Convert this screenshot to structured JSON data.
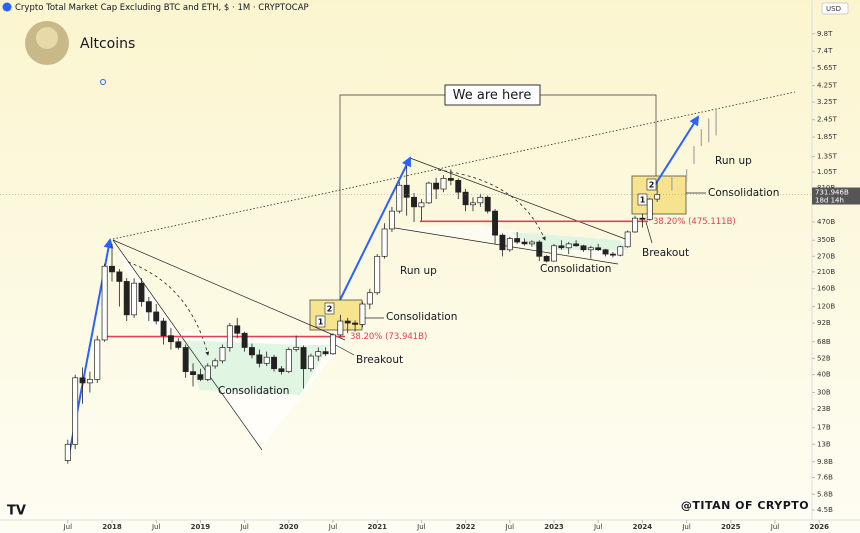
{
  "chart_data": {
    "type": "candlestick",
    "title": "Crypto Total Market Cap Excluding BTC and ETH, $ · 1M · CRYPTOCAP",
    "subtitle": "Altcoins",
    "currency": "USD",
    "log_scale": true,
    "x": [
      "2017-07",
      "2017-08",
      "2017-09",
      "2017-10",
      "2017-11",
      "2017-12",
      "2018-01",
      "2018-02",
      "2018-03",
      "2018-04",
      "2018-05",
      "2018-06",
      "2018-07",
      "2018-08",
      "2018-09",
      "2018-10",
      "2018-11",
      "2018-12",
      "2019-01",
      "2019-02",
      "2019-03",
      "2019-04",
      "2019-05",
      "2019-06",
      "2019-07",
      "2019-08",
      "2019-09",
      "2019-10",
      "2019-11",
      "2019-12",
      "2020-01",
      "2020-02",
      "2020-03",
      "2020-04",
      "2020-05",
      "2020-06",
      "2020-07",
      "2020-08",
      "2020-09",
      "2020-10",
      "2020-11",
      "2020-12",
      "2021-01",
      "2021-02",
      "2021-03",
      "2021-04",
      "2021-05",
      "2021-06",
      "2021-07",
      "2021-08",
      "2021-09",
      "2021-10",
      "2021-11",
      "2021-12",
      "2022-01",
      "2022-02",
      "2022-03",
      "2022-04",
      "2022-05",
      "2022-06",
      "2022-07",
      "2022-08",
      "2022-09",
      "2022-10",
      "2022-11",
      "2022-12",
      "2023-01",
      "2023-02",
      "2023-03",
      "2023-04",
      "2023-05",
      "2023-06",
      "2023-07",
      "2023-08",
      "2023-09",
      "2023-10",
      "2023-11",
      "2023-12",
      "2024-01",
      "2024-02",
      "2024-03"
    ],
    "open": [
      10000000000.0,
      13000000000.0,
      38000000000.0,
      35000000000.0,
      37000000000.0,
      70000000000.0,
      230000000000.0,
      210000000000.0,
      180000000000.0,
      105000000000.0,
      175000000000.0,
      130000000000.0,
      110000000000.0,
      95000000000.0,
      75000000000.0,
      68000000000.0,
      62000000000.0,
      42000000000.0,
      40000000000.0,
      37000000000.0,
      46000000000.0,
      50000000000.0,
      62000000000.0,
      88000000000.0,
      78000000000.0,
      62000000000.0,
      55000000000.0,
      48000000000.0,
      53000000000.0,
      44000000000.0,
      42000000000.0,
      60000000000.0,
      62000000000.0,
      44000000000.0,
      54000000000.0,
      58000000000.0,
      56000000000.0,
      76000000000.0,
      95000000000.0,
      92000000000.0,
      90000000000.0,
      125000000000.0,
      150000000000.0,
      270000000000.0,
      420000000000.0,
      560000000000.0,
      850000000000.0,
      700000000000.0,
      600000000000.0,
      640000000000.0,
      880000000000.0,
      800000000000.0,
      950000000000.0,
      920000000000.0,
      760000000000.0,
      620000000000.0,
      640000000000.0,
      700000000000.0,
      560000000000.0,
      380000000000.0,
      300000000000.0,
      360000000000.0,
      340000000000.0,
      330000000000.0,
      340000000000.0,
      270000000000.0,
      250000000000.0,
      320000000000.0,
      310000000000.0,
      330000000000.0,
      320000000000.0,
      300000000000.0,
      310000000000.0,
      300000000000.0,
      280000000000.0,
      275000000000.0,
      315000000000.0,
      400000000000.0,
      500000000000.0,
      490000000000.0,
      680000000000.0
    ],
    "high": [
      14000000000.0,
      40000000000.0,
      45000000000.0,
      42000000000.0,
      75000000000.0,
      240000000000.0,
      330000000000.0,
      220000000000.0,
      190000000000.0,
      190000000000.0,
      190000000000.0,
      140000000000.0,
      125000000000.0,
      100000000000.0,
      85000000000.0,
      72000000000.0,
      65000000000.0,
      48000000000.0,
      44000000000.0,
      48000000000.0,
      52000000000.0,
      65000000000.0,
      92000000000.0,
      100000000000.0,
      80000000000.0,
      66000000000.0,
      60000000000.0,
      58000000000.0,
      55000000000.0,
      46000000000.0,
      62000000000.0,
      75000000000.0,
      64000000000.0,
      56000000000.0,
      62000000000.0,
      62000000000.0,
      78000000000.0,
      105000000000.0,
      100000000000.0,
      96000000000.0,
      130000000000.0,
      160000000000.0,
      280000000000.0,
      460000000000.0,
      600000000000.0,
      900000000000.0,
      1150000000000.0,
      750000000000.0,
      680000000000.0,
      900000000000.0,
      960000000000.0,
      1000000000000.0,
      1100000000000.0,
      950000000000.0,
      800000000000.0,
      700000000000.0,
      740000000000.0,
      720000000000.0,
      580000000000.0,
      390000000000.0,
      370000000000.0,
      400000000000.0,
      360000000000.0,
      350000000000.0,
      350000000000.0,
      275000000000.0,
      330000000000.0,
      350000000000.0,
      340000000000.0,
      350000000000.0,
      325000000000.0,
      320000000000.0,
      330000000000.0,
      305000000000.0,
      290000000000.0,
      320000000000.0,
      410000000000.0,
      520000000000.0,
      540000000000.0,
      690000000000.0,
      900000000000.0
    ],
    "low": [
      9500000000.0,
      12000000000.0,
      25000000000.0,
      30000000000.0,
      35000000000.0,
      68000000000.0,
      180000000000.0,
      120000000000.0,
      95000000000.0,
      100000000000.0,
      120000000000.0,
      95000000000.0,
      90000000000.0,
      65000000000.0,
      60000000000.0,
      60000000000.0,
      38000000000.0,
      33000000000.0,
      36000000000.0,
      36000000000.0,
      44000000000.0,
      48000000000.0,
      58000000000.0,
      72000000000.0,
      58000000000.0,
      52000000000.0,
      45000000000.0,
      46000000000.0,
      42000000000.0,
      40000000000.0,
      41000000000.0,
      58000000000.0,
      32000000000.0,
      42000000000.0,
      50000000000.0,
      54000000000.0,
      55000000000.0,
      74000000000.0,
      78000000000.0,
      80000000000.0,
      86000000000.0,
      115000000000.0,
      145000000000.0,
      260000000000.0,
      400000000000.0,
      540000000000.0,
      520000000000.0,
      470000000000.0,
      480000000000.0,
      630000000000.0,
      680000000000.0,
      760000000000.0,
      850000000000.0,
      680000000000.0,
      560000000000.0,
      560000000000.0,
      600000000000.0,
      540000000000.0,
      330000000000.0,
      270000000000.0,
      290000000000.0,
      330000000000.0,
      320000000000.0,
      315000000000.0,
      250000000000.0,
      245000000000.0,
      248000000000.0,
      300000000000.0,
      280000000000.0,
      315000000000.0,
      290000000000.0,
      260000000000.0,
      295000000000.0,
      270000000000.0,
      265000000000.0,
      270000000000.0,
      310000000000.0,
      395000000000.0,
      430000000000.0,
      480000000000.0,
      650000000000.0
    ],
    "close": [
      13000000000.0,
      38000000000.0,
      35000000000.0,
      37000000000.0,
      70000000000.0,
      230000000000.0,
      210000000000.0,
      180000000000.0,
      105000000000.0,
      175000000000.0,
      130000000000.0,
      110000000000.0,
      95000000000.0,
      75000000000.0,
      68000000000.0,
      62000000000.0,
      42000000000.0,
      40000000000.0,
      37000000000.0,
      46000000000.0,
      50000000000.0,
      62000000000.0,
      88000000000.0,
      78000000000.0,
      62000000000.0,
      55000000000.0,
      48000000000.0,
      53000000000.0,
      44000000000.0,
      42000000000.0,
      60000000000.0,
      62000000000.0,
      44000000000.0,
      54000000000.0,
      58000000000.0,
      56000000000.0,
      76000000000.0,
      95000000000.0,
      92000000000.0,
      90000000000.0,
      125000000000.0,
      150000000000.0,
      270000000000.0,
      420000000000.0,
      560000000000.0,
      850000000000.0,
      700000000000.0,
      600000000000.0,
      640000000000.0,
      880000000000.0,
      800000000000.0,
      950000000000.0,
      920000000000.0,
      760000000000.0,
      620000000000.0,
      640000000000.0,
      700000000000.0,
      560000000000.0,
      380000000000.0,
      300000000000.0,
      360000000000.0,
      340000000000.0,
      330000000000.0,
      340000000000.0,
      270000000000.0,
      250000000000.0,
      320000000000.0,
      310000000000.0,
      330000000000.0,
      320000000000.0,
      300000000000.0,
      310000000000.0,
      300000000000.0,
      280000000000.0,
      275000000000.0,
      315000000000.0,
      400000000000.0,
      500000000000.0,
      490000000000.0,
      680000000000.0,
      731946000000.0
    ],
    "price_tag": {
      "value": 731946000000.0,
      "label": "731.946B",
      "countdown": "18d 14h"
    },
    "projection": {
      "x": [
        "2024-05",
        "2024-07",
        "2024-08",
        "2024-09",
        "2024-10",
        "2024-11"
      ],
      "low": [
        780000000000.0,
        900000000000.0,
        1200000000000.0,
        1600000000000.0,
        1700000000000.0,
        1900000000000.0
      ],
      "high": [
        1000000000000.0,
        1100000000000.0,
        1600000000000.0,
        2100000000000.0,
        2500000000000.0,
        2900000000000.0
      ]
    },
    "fib_levels": [
      {
        "value": 73941000000.0,
        "label": "38.20% (73.941B)"
      },
      {
        "value": 475111000000.0,
        "label": "38.20% (475.111B)"
      }
    ],
    "ylim": [
      3830000000.0,
      16900000000000.0
    ],
    "yticks": [
      {
        "value": 4500000000.0,
        "label": "4.5B"
      },
      {
        "value": 5800000000.0,
        "label": "5.8B"
      },
      {
        "value": 7600000000.0,
        "label": "7.6B"
      },
      {
        "value": 9800000000.0,
        "label": "9.8B"
      },
      {
        "value": 13000000000.0,
        "label": "13B"
      },
      {
        "value": 17000000000.0,
        "label": "17B"
      },
      {
        "value": 23000000000.0,
        "label": "23B"
      },
      {
        "value": 30000000000.0,
        "label": "30B"
      },
      {
        "value": 40000000000.0,
        "label": "40B"
      },
      {
        "value": 52000000000.0,
        "label": "52B"
      },
      {
        "value": 68000000000.0,
        "label": "68B"
      },
      {
        "value": 92000000000.0,
        "label": "92B"
      },
      {
        "value": 120000000000.0,
        "label": "120B"
      },
      {
        "value": 160000000000.0,
        "label": "160B"
      },
      {
        "value": 210000000000.0,
        "label": "210B"
      },
      {
        "value": 270000000000.0,
        "label": "270B"
      },
      {
        "value": 350000000000.0,
        "label": "350B"
      },
      {
        "value": 470000000000.0,
        "label": "470B"
      },
      {
        "value": 810000000000.0,
        "label": "810B"
      },
      {
        "value": 1050000000000.0,
        "label": "1.05T"
      },
      {
        "value": 1350000000000.0,
        "label": "1.35T"
      },
      {
        "value": 1850000000000.0,
        "label": "1.85T"
      },
      {
        "value": 2450000000000.0,
        "label": "2.45T"
      },
      {
        "value": 3250000000000.0,
        "label": "3.25T"
      },
      {
        "value": 4250000000000.0,
        "label": "4.25T"
      },
      {
        "value": 5650000000000.0,
        "label": "5.65T"
      },
      {
        "value": 7400000000000.0,
        "label": "7.4T"
      },
      {
        "value": 9800000000000.0,
        "label": "9.8T"
      }
    ],
    "xticks": [
      {
        "value": "2017-07",
        "label": "Jul"
      },
      {
        "value": "2018-01",
        "label": "2018"
      },
      {
        "value": "2018-07",
        "label": "Jul"
      },
      {
        "value": "2019-01",
        "label": "2019"
      },
      {
        "value": "2019-07",
        "label": "Jul"
      },
      {
        "value": "2020-01",
        "label": "2020"
      },
      {
        "value": "2020-07",
        "label": "Jul"
      },
      {
        "value": "2021-01",
        "label": "2021"
      },
      {
        "value": "2021-07",
        "label": "Jul"
      },
      {
        "value": "2022-01",
        "label": "2022"
      },
      {
        "value": "2022-07",
        "label": "Jul"
      },
      {
        "value": "2023-01",
        "label": "2023"
      },
      {
        "value": "2023-07",
        "label": "Jul"
      },
      {
        "value": "2024-01",
        "label": "2024"
      },
      {
        "value": "2024-07",
        "label": "Jul"
      },
      {
        "value": "2025-01",
        "label": "2025"
      },
      {
        "value": "2025-07",
        "label": "Jul"
      },
      {
        "value": "2026-01",
        "label": "2026"
      }
    ],
    "annotations": {
      "here": "We are here",
      "run_up_1": "Run up",
      "run_up_2": "Run up",
      "consolidation_1": "Consolidation",
      "consolidation_2": "Consolidation",
      "consolidation_3": "Consolidation",
      "consolidation_4": "Consolidation",
      "breakout_1": "Breakout",
      "breakout_2": "Breakout",
      "box_1a": "1",
      "box_1b": "2",
      "box_2a": "1",
      "box_2b": "2",
      "watermark": "@TITAN OF CRYPTO"
    }
  }
}
